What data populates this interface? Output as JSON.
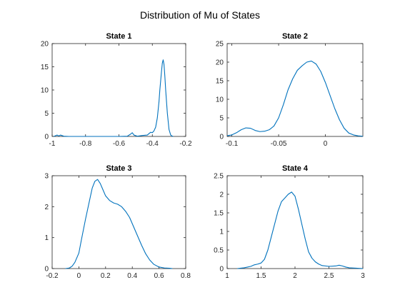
{
  "figure": {
    "title": "Distribution of Mu of States"
  },
  "chart_data": [
    {
      "type": "line",
      "title": "State 1",
      "xlabel": "",
      "ylabel": "",
      "xlim": [
        -1,
        -0.2
      ],
      "ylim": [
        0,
        20
      ],
      "xticks": [
        -1,
        -0.8,
        -0.6,
        -0.4,
        -0.2
      ],
      "xtick_labels": [
        "-1",
        "-0.8",
        "-0.6",
        "-0.4",
        "-0.2"
      ],
      "yticks": [
        0,
        5,
        10,
        15,
        20
      ],
      "ytick_labels": [
        "0",
        "5",
        "10",
        "15",
        "20"
      ],
      "grid": false,
      "series": [
        {
          "x": [
            -0.99,
            -0.97,
            -0.96,
            -0.95,
            -0.93,
            -0.9,
            -0.8,
            -0.7,
            -0.6,
            -0.55,
            -0.53,
            -0.52,
            -0.51,
            -0.49,
            -0.46,
            -0.43,
            -0.42,
            -0.41,
            -0.4,
            -0.39,
            -0.38,
            -0.37,
            -0.36,
            -0.355,
            -0.35,
            -0.345,
            -0.34,
            -0.335,
            -0.33,
            -0.325,
            -0.32,
            -0.31,
            -0.3,
            -0.29,
            -0.28,
            -0.275
          ],
          "y": [
            0,
            0.3,
            0.1,
            0.3,
            0.05,
            0,
            0,
            0,
            0,
            0.05,
            0.5,
            0.8,
            0.3,
            0.05,
            0.2,
            0.3,
            0.6,
            0.9,
            0.8,
            1.2,
            2.0,
            4.0,
            7.5,
            10.0,
            12.0,
            14.0,
            15.8,
            16.5,
            15.5,
            13.0,
            10.0,
            5.0,
            1.5,
            0.3,
            0.05,
            0
          ]
        }
      ]
    },
    {
      "type": "line",
      "title": "State 2",
      "xlabel": "",
      "ylabel": "",
      "xlim": [
        -0.105,
        0.04
      ],
      "ylim": [
        0,
        25
      ],
      "xticks": [
        -0.1,
        -0.05,
        0
      ],
      "xtick_labels": [
        "-0.1",
        "-0.05",
        "0"
      ],
      "yticks": [
        0,
        5,
        10,
        15,
        20,
        25
      ],
      "ytick_labels": [
        "0",
        "5",
        "10",
        "15",
        "20",
        "25"
      ],
      "grid": false,
      "series": [
        {
          "x": [
            -0.105,
            -0.1,
            -0.095,
            -0.09,
            -0.085,
            -0.08,
            -0.075,
            -0.07,
            -0.065,
            -0.06,
            -0.055,
            -0.05,
            -0.045,
            -0.04,
            -0.035,
            -0.03,
            -0.025,
            -0.02,
            -0.015,
            -0.01,
            -0.005,
            0,
            0.005,
            0.01,
            0.015,
            0.02,
            0.025,
            0.03,
            0.035,
            0.04
          ],
          "y": [
            0.2,
            0.4,
            1.0,
            1.8,
            2.3,
            2.2,
            1.6,
            1.3,
            1.4,
            1.8,
            2.8,
            5.0,
            8.5,
            12.5,
            15.5,
            17.8,
            19.0,
            20.0,
            20.3,
            19.5,
            17.5,
            14.5,
            11.0,
            7.5,
            4.5,
            2.2,
            0.9,
            0.4,
            0.15,
            0.05
          ]
        }
      ]
    },
    {
      "type": "line",
      "title": "State 3",
      "xlabel": "",
      "ylabel": "",
      "xlim": [
        -0.2,
        0.8
      ],
      "ylim": [
        0,
        3
      ],
      "xticks": [
        -0.2,
        0,
        0.2,
        0.4,
        0.6,
        0.8
      ],
      "xtick_labels": [
        "-0.2",
        "0",
        "0.2",
        "0.4",
        "0.6",
        "0.8"
      ],
      "yticks": [
        0,
        1,
        2,
        3
      ],
      "ytick_labels": [
        "0",
        "1",
        "2",
        "3"
      ],
      "grid": false,
      "series": [
        {
          "x": [
            -0.1,
            -0.07,
            -0.05,
            -0.03,
            0,
            0.02,
            0.05,
            0.08,
            0.1,
            0.12,
            0.14,
            0.16,
            0.18,
            0.2,
            0.23,
            0.26,
            0.29,
            0.32,
            0.35,
            0.38,
            0.41,
            0.44,
            0.47,
            0.5,
            0.53,
            0.56,
            0.6,
            0.64,
            0.68,
            0.7
          ],
          "y": [
            0,
            0.02,
            0.08,
            0.2,
            0.5,
            0.95,
            1.6,
            2.2,
            2.6,
            2.82,
            2.88,
            2.75,
            2.55,
            2.35,
            2.2,
            2.12,
            2.08,
            2.0,
            1.85,
            1.65,
            1.35,
            1.05,
            0.75,
            0.48,
            0.28,
            0.14,
            0.05,
            0.02,
            0.01,
            0
          ]
        }
      ]
    },
    {
      "type": "line",
      "title": "State 4",
      "xlabel": "",
      "ylabel": "",
      "xlim": [
        1,
        3
      ],
      "ylim": [
        0,
        2.5
      ],
      "xticks": [
        1,
        1.5,
        2,
        2.5,
        3
      ],
      "xtick_labels": [
        "1",
        "1.5",
        "2",
        "2.5",
        "3"
      ],
      "yticks": [
        0,
        0.5,
        1,
        1.5,
        2,
        2.5
      ],
      "ytick_labels": [
        "0",
        "0.5",
        "1",
        "1.5",
        "2",
        "2.5"
      ],
      "grid": false,
      "series": [
        {
          "x": [
            1.15,
            1.2,
            1.25,
            1.3,
            1.35,
            1.4,
            1.45,
            1.5,
            1.55,
            1.6,
            1.65,
            1.7,
            1.75,
            1.8,
            1.85,
            1.9,
            1.95,
            2.0,
            2.05,
            2.1,
            2.15,
            2.2,
            2.25,
            2.3,
            2.35,
            2.4,
            2.5,
            2.6,
            2.65,
            2.7,
            2.75,
            2.8,
            2.9,
            3.0
          ],
          "y": [
            0,
            0.01,
            0.02,
            0.04,
            0.06,
            0.1,
            0.12,
            0.15,
            0.25,
            0.5,
            0.85,
            1.2,
            1.55,
            1.8,
            1.9,
            2.0,
            2.06,
            1.95,
            1.6,
            1.2,
            0.8,
            0.45,
            0.28,
            0.18,
            0.12,
            0.08,
            0.06,
            0.07,
            0.09,
            0.07,
            0.04,
            0.02,
            0.01,
            0
          ]
        }
      ]
    }
  ]
}
